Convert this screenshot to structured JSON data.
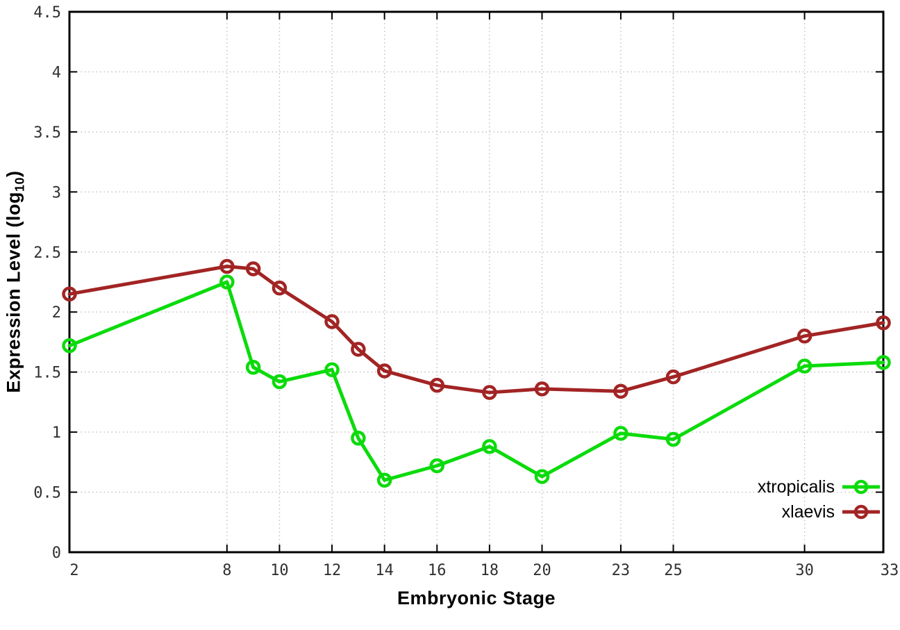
{
  "chart_data": {
    "type": "line",
    "title": "",
    "xlabel": "Embryonic Stage",
    "ylabel_parts": {
      "prefix": "Expression Level (log",
      "sub": "10",
      "suffix": ")"
    },
    "xlim": [
      2,
      33
    ],
    "ylim": [
      0,
      4.5
    ],
    "grid": true,
    "legend_position": "bottom-right",
    "xticks": [
      2,
      8,
      10,
      12,
      14,
      16,
      18,
      20,
      23,
      25,
      30,
      33
    ],
    "xtick_labels": [
      "2",
      "8",
      "10",
      "12",
      "14",
      "16",
      "18",
      "20",
      "23",
      "25",
      "30",
      "33"
    ],
    "yticks": [
      0,
      0.5,
      1,
      1.5,
      2,
      2.5,
      3,
      3.5,
      4,
      4.5
    ],
    "ytick_labels": [
      "0",
      "0.5",
      "1",
      "1.5",
      "2",
      "2.5",
      "3",
      "3.5",
      "4",
      "4.5"
    ],
    "x": [
      2,
      8,
      9,
      10,
      12,
      13,
      14,
      16,
      18,
      20,
      23,
      25,
      30,
      33
    ],
    "series": [
      {
        "name": "xtropicalis",
        "color": "#0bdb0b",
        "values": [
          1.72,
          2.25,
          1.54,
          1.42,
          1.52,
          0.95,
          0.6,
          0.72,
          0.88,
          0.63,
          0.99,
          0.94,
          1.55,
          1.58
        ]
      },
      {
        "name": "xlaevis",
        "color": "#a22424",
        "values": [
          2.15,
          2.38,
          2.36,
          2.2,
          1.92,
          1.69,
          1.51,
          1.39,
          1.33,
          1.36,
          1.34,
          1.46,
          1.8,
          1.91
        ]
      }
    ],
    "colors": {
      "border": "#000000",
      "grid": "#bdbdbd",
      "tick_text": "#303030"
    }
  }
}
